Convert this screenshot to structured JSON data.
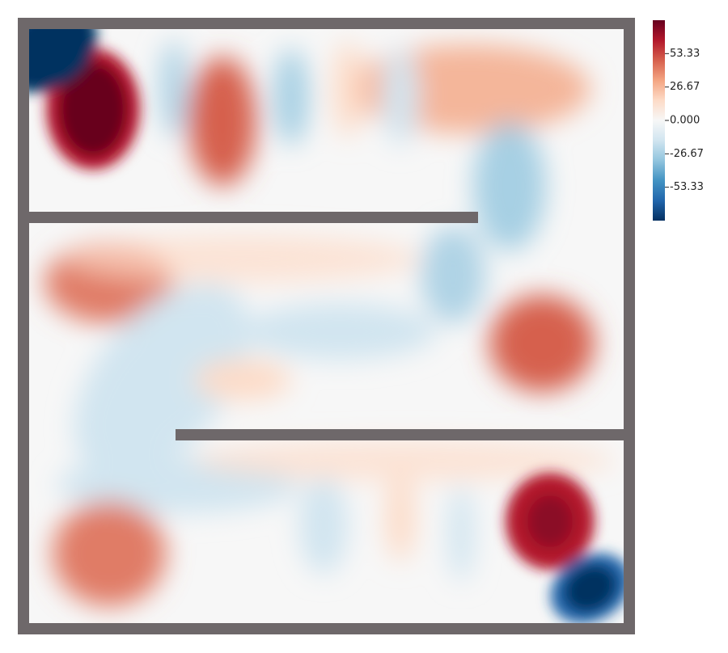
{
  "chart_data": {
    "type": "colorbar",
    "colormap": [
      "#053061",
      "#2166ac",
      "#4393c3",
      "#92c5de",
      "#d1e5f0",
      "#f7f7f7",
      "#fddbc7",
      "#f4a582",
      "#d6604d",
      "#b2182b",
      "#67001f"
    ],
    "clim": [
      -80,
      80
    ],
    "ticks": [
      53.33,
      26.67,
      {
        "value": 0,
        "label": "0.000"
      },
      {
        "value": -26.67,
        "label": "-26.67"
      },
      {
        "value": -53.33,
        "label": "-53.33"
      }
    ]
  }
}
